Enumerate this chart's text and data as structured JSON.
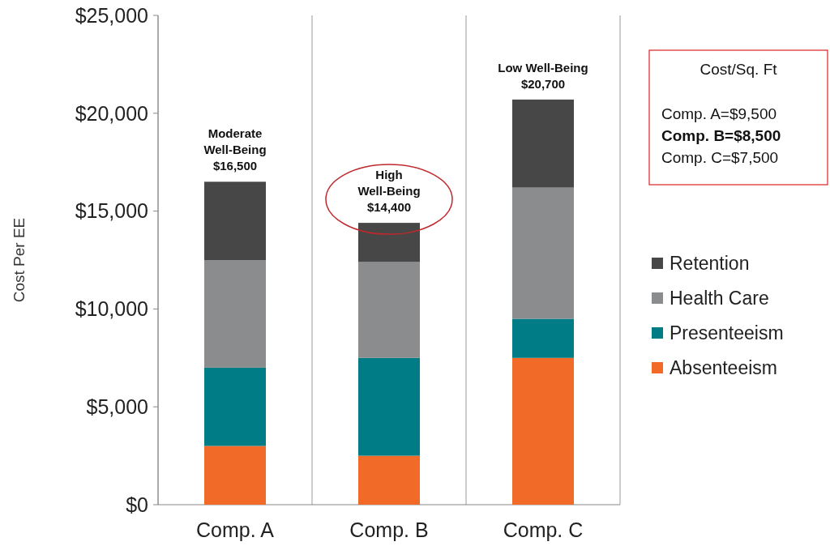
{
  "chart_data": {
    "type": "bar",
    "stacked": true,
    "ylabel": "Cost Per EE",
    "categories": [
      "Comp.  A",
      "Comp.  B",
      "Comp.  C"
    ],
    "series": [
      {
        "name": "Absenteeism",
        "color": "#f26a27",
        "values": [
          3000,
          2500,
          7500
        ]
      },
      {
        "name": "Presenteeism",
        "color": "#007c87",
        "values": [
          4000,
          5000,
          2000
        ]
      },
      {
        "name": "Health Care",
        "color": "#8a8c8e",
        "values": [
          5500,
          4900,
          6700
        ]
      },
      {
        "name": "Retention",
        "color": "#474747",
        "values": [
          4000,
          2000,
          4500
        ]
      }
    ],
    "ylim": [
      0,
      25000
    ],
    "yticks": [
      {
        "value": 0,
        "label": "$0"
      },
      {
        "value": 5000,
        "label": "$5,000"
      },
      {
        "value": 10000,
        "label": "$10,000"
      },
      {
        "value": 15000,
        "label": "$15,000"
      },
      {
        "value": 20000,
        "label": "$20,000"
      },
      {
        "value": 25000,
        "label": "$25,000"
      }
    ],
    "grid": "x",
    "legend": "right",
    "annotations": [
      {
        "text": "Moderate\nWell-Being\n$16,500",
        "x": "Comp.  A",
        "y": 16500
      },
      {
        "text": "High\nWell-Being\n$14,400",
        "x": "Comp.  B",
        "y": 14400
      },
      {
        "text": "Low Well-Being\n$20,700",
        "x": "Comp.  C",
        "y": 20700
      },
      "Cost/Sq. Ft",
      "Comp.  A=$9,500",
      "Comp. B=$8,500",
      "Comp. C=$7,500"
    ]
  }
}
